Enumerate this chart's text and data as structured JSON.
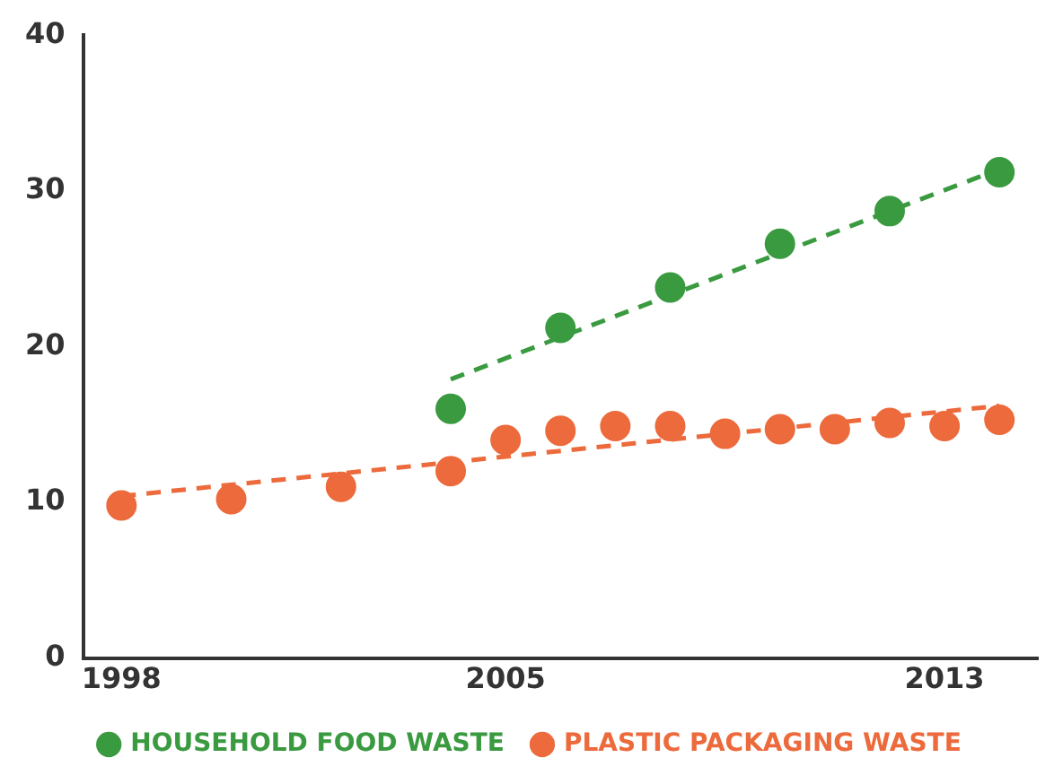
{
  "chart_data": {
    "type": "scatter",
    "series": [
      {
        "name": "HOUSEHOLD FOOD WASTE",
        "color": "#3a9a40",
        "x": [
          2004,
          2006,
          2008,
          2010,
          2012,
          2014
        ],
        "values": [
          16.0,
          21.2,
          23.8,
          26.6,
          28.7,
          31.2
        ]
      },
      {
        "name": "PLASTIC PACKAGING WASTE",
        "color": "#ec6a3c",
        "x": [
          1998,
          2000,
          2002,
          2004,
          2005,
          2006,
          2007,
          2008,
          2009,
          2010,
          2011,
          2012,
          2013,
          2014
        ],
        "values": [
          9.8,
          10.2,
          11.0,
          12.0,
          14.0,
          14.6,
          14.9,
          14.9,
          14.4,
          14.7,
          14.7,
          15.1,
          14.9,
          15.3
        ]
      },
      {
        "type": "line",
        "marker": "none",
        "color": "#3a9a40",
        "x": [
          2004,
          2014
        ],
        "values": [
          17.9,
          31.4
        ]
      },
      {
        "type": "line",
        "marker": "none",
        "color": "#ec6a3c",
        "x": [
          1998,
          2014
        ],
        "values": [
          10.4,
          16.2
        ]
      }
    ],
    "xlim": [
      1997.3,
      2014.7
    ],
    "ylim": [
      0,
      40
    ],
    "xticks": [
      1998,
      2005,
      2013
    ],
    "yticks": [
      0,
      10,
      20,
      30,
      40
    ],
    "grid": false,
    "legend": "bottom",
    "marker": "circle",
    "line_style": "dashed"
  }
}
